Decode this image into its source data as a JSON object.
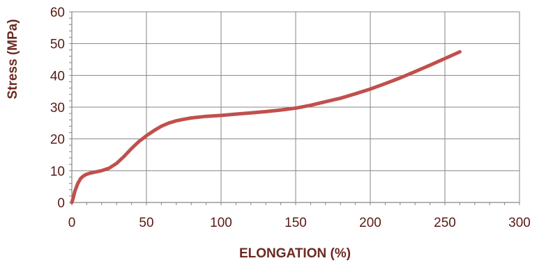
{
  "chart_data": {
    "type": "line",
    "title": "",
    "xlabel": "ELONGATION (%)",
    "ylabel": "Stress (MPa)",
    "xlim": [
      0,
      300
    ],
    "ylim": [
      0,
      60
    ],
    "xticks": [
      0,
      50,
      100,
      150,
      200,
      250,
      300
    ],
    "yticks": [
      0,
      10,
      20,
      30,
      40,
      50,
      60
    ],
    "grid": true,
    "series": [
      {
        "color": "#c0504d",
        "x": [
          0,
          1,
          2,
          4,
          6,
          8,
          10,
          12,
          15,
          20,
          25,
          30,
          35,
          40,
          45,
          50,
          55,
          60,
          65,
          70,
          75,
          80,
          90,
          100,
          110,
          120,
          130,
          140,
          150,
          160,
          170,
          180,
          190,
          200,
          210,
          220,
          230,
          240,
          250,
          260
        ],
        "y": [
          0,
          1.5,
          3.5,
          6.0,
          7.6,
          8.4,
          8.9,
          9.2,
          9.5,
          10.0,
          10.8,
          12.3,
          14.5,
          17.0,
          19.2,
          21.0,
          22.6,
          24.0,
          25.0,
          25.7,
          26.2,
          26.6,
          27.1,
          27.4,
          27.8,
          28.2,
          28.6,
          29.1,
          29.7,
          30.6,
          31.7,
          32.8,
          34.2,
          35.7,
          37.4,
          39.2,
          41.2,
          43.2,
          45.3,
          47.4
        ]
      }
    ]
  }
}
